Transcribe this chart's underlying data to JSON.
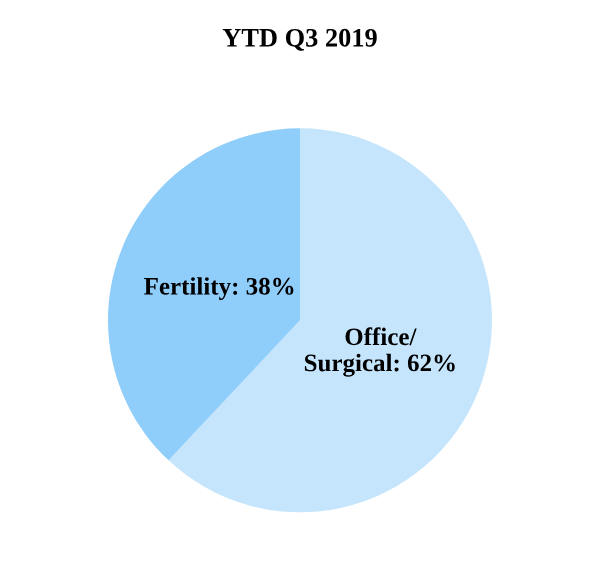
{
  "chart_data": {
    "type": "pie",
    "title": "YTD Q3 2019",
    "categories": [
      "Office/\nSurgical",
      "Fertility"
    ],
    "values": [
      62,
      38
    ],
    "value_labels": [
      "62%",
      "38%"
    ],
    "colors": [
      "#c5e5fc",
      "#8fcdfa"
    ]
  }
}
